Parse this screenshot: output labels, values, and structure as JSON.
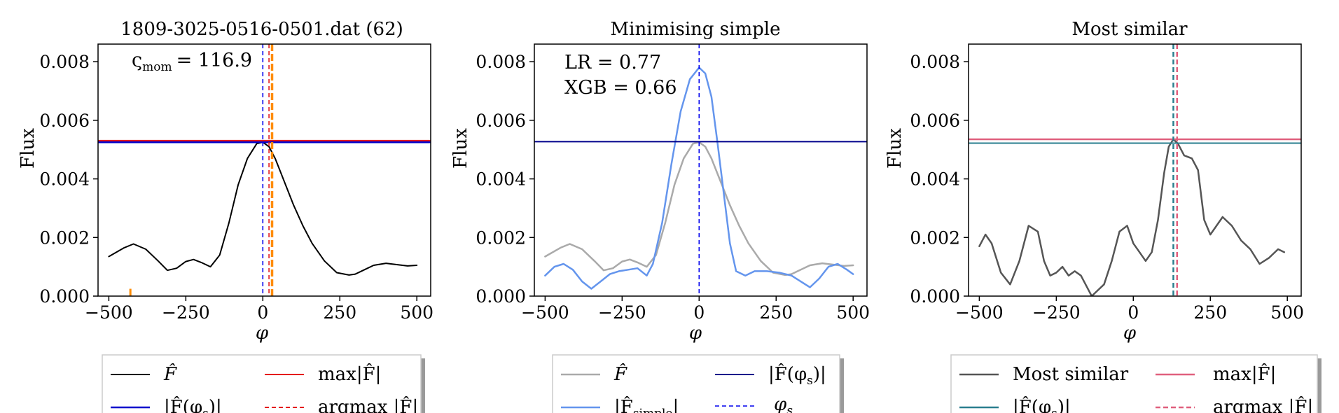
{
  "panels": [
    {
      "title": "1809-3025-0516-0501.dat (62)",
      "ylabel": "Flux",
      "xlabel": "φ",
      "annotations": [
        "ς",
        "mom",
        "= 116.9"
      ],
      "legend": [
        {
          "label_main": "F̂",
          "label_sub": "",
          "color": "#000000",
          "style": "solid"
        },
        {
          "label_main": "max|F̂|",
          "label_sub": "",
          "color": "#e41a1c",
          "style": "solid"
        },
        {
          "label_main": "|F̂(φ",
          "label_sub": "s",
          "label_tail": ")|",
          "color": "#0000cc",
          "style": "solid"
        },
        {
          "label_main": "argmax |F̂|",
          "label_sub": "",
          "color": "#e41a1c",
          "style": "dashed"
        }
      ]
    },
    {
      "title": "Minimising simple",
      "ylabel": "Flux",
      "xlabel": "φ",
      "annotations": [
        "LR = 0.77",
        "XGB = 0.66"
      ],
      "legend": [
        {
          "label_main": "F̂",
          "label_sub": "",
          "color": "#aaaaaa",
          "style": "solid"
        },
        {
          "label_main": "|F̂(φ",
          "label_sub": "s",
          "label_tail": ")|",
          "color": "#00008b",
          "style": "solid"
        },
        {
          "label_main": "|F̂",
          "label_sub": "simple",
          "label_tail": "|",
          "color": "#6495ed",
          "style": "solid"
        },
        {
          "label_main": "φ",
          "label_sub": "s",
          "color": "#0000ee",
          "style": "dashed"
        }
      ]
    },
    {
      "title": "Most similar",
      "ylabel": "Flux",
      "xlabel": "φ",
      "annotations": [],
      "legend": [
        {
          "label_main": "Most similar",
          "label_sub": "",
          "color": "#555555",
          "style": "solid"
        },
        {
          "label_main": "max|F̂|",
          "label_sub": "",
          "color": "#e0607e",
          "style": "solid"
        },
        {
          "label_main": "|F̂(φ",
          "label_sub": "s",
          "label_tail": ")|",
          "color": "#2a7f8f",
          "style": "solid"
        },
        {
          "label_main": "argmax |F̂|",
          "label_sub": "",
          "color": "#e0607e",
          "style": "dashed"
        }
      ]
    }
  ],
  "chart_data": [
    {
      "type": "line",
      "title": "1809-3025-0516-0501.dat (62)",
      "xlabel": "φ",
      "ylabel": "Flux",
      "xlim": [
        -535,
        545
      ],
      "ylim": [
        0,
        0.0086
      ],
      "xticks": [
        -500,
        -250,
        0,
        250,
        500
      ],
      "xtick_labels": [
        "−500",
        "−250",
        "0",
        "250",
        "500"
      ],
      "yticks": [
        0,
        0.002,
        0.004,
        0.006,
        0.008
      ],
      "ytick_labels": [
        "0.000",
        "0.002",
        "0.004",
        "0.006",
        "0.008"
      ],
      "series": [
        {
          "key": "F",
          "color": "#000000",
          "width": 2,
          "x": [
            -500,
            -450,
            -420,
            -380,
            -340,
            -310,
            -280,
            -250,
            -225,
            -200,
            -170,
            -140,
            -110,
            -80,
            -50,
            -20,
            0,
            20,
            40,
            70,
            100,
            130,
            160,
            200,
            240,
            280,
            300,
            330,
            360,
            400,
            430,
            470,
            500
          ],
          "y": [
            0.00135,
            0.00165,
            0.00178,
            0.0016,
            0.0012,
            0.00088,
            0.00095,
            0.00118,
            0.00125,
            0.00115,
            0.001,
            0.0014,
            0.0025,
            0.0038,
            0.0047,
            0.0052,
            0.00525,
            0.0051,
            0.0047,
            0.0039,
            0.0031,
            0.0024,
            0.0018,
            0.0012,
            0.0008,
            0.00072,
            0.00075,
            0.0009,
            0.00105,
            0.00112,
            0.00108,
            0.00103,
            0.00105
          ]
        }
      ],
      "hlines": [
        {
          "key": "max",
          "y": 0.0053,
          "color": "#e41a1c",
          "dash": "",
          "width": 2.5
        },
        {
          "key": "Fphis",
          "y": 0.00525,
          "color": "#0000cc",
          "dash": "",
          "width": 2.5
        }
      ],
      "vlines": [
        {
          "key": "phis",
          "x": 0,
          "color": "#0000ee",
          "dash": "6,4",
          "width": 1.6
        },
        {
          "key": "argmax",
          "x": 20,
          "color": "#e41a1c",
          "dash": "6,4",
          "width": 1.6
        },
        {
          "key": "marker",
          "x": 30,
          "color": "#ff8c00",
          "dash": "10,4",
          "width": 3.5
        }
      ],
      "rug": [
        {
          "x": -430,
          "height": 0.00025,
          "color": "#ff8c00"
        }
      ]
    },
    {
      "type": "line",
      "title": "Minimising simple",
      "xlabel": "φ",
      "ylabel": "Flux",
      "xlim": [
        -535,
        545
      ],
      "ylim": [
        0,
        0.0086
      ],
      "xticks": [
        -500,
        -250,
        0,
        250,
        500
      ],
      "xtick_labels": [
        "−500",
        "−250",
        "0",
        "250",
        "500"
      ],
      "yticks": [
        0,
        0.002,
        0.004,
        0.006,
        0.008
      ],
      "ytick_labels": [
        "0.000",
        "0.002",
        "0.004",
        "0.006",
        "0.008"
      ],
      "series": [
        {
          "key": "F",
          "color": "#aaaaaa",
          "width": 2.5,
          "x": [
            -500,
            -450,
            -420,
            -380,
            -340,
            -310,
            -280,
            -250,
            -225,
            -200,
            -170,
            -140,
            -110,
            -80,
            -50,
            -20,
            0,
            20,
            40,
            70,
            100,
            130,
            160,
            200,
            240,
            280,
            300,
            330,
            360,
            400,
            430,
            470,
            500
          ],
          "y": [
            0.00135,
            0.00165,
            0.00178,
            0.0016,
            0.0012,
            0.00088,
            0.00095,
            0.00118,
            0.00125,
            0.00115,
            0.001,
            0.0014,
            0.0025,
            0.0038,
            0.0047,
            0.0052,
            0.00525,
            0.0051,
            0.0047,
            0.0039,
            0.0031,
            0.0024,
            0.0018,
            0.0012,
            0.0008,
            0.00072,
            0.00075,
            0.0009,
            0.00105,
            0.00112,
            0.00108,
            0.00103,
            0.00105
          ]
        },
        {
          "key": "Fsimple",
          "color": "#6495ed",
          "width": 2.5,
          "x": [
            -500,
            -470,
            -440,
            -410,
            -380,
            -350,
            -320,
            -290,
            -260,
            -230,
            -200,
            -170,
            -150,
            -120,
            -90,
            -60,
            -30,
            0,
            20,
            40,
            60,
            80,
            100,
            120,
            150,
            180,
            220,
            260,
            300,
            330,
            360,
            390,
            420,
            450,
            480,
            500
          ],
          "y": [
            0.0007,
            0.001,
            0.0011,
            0.0009,
            0.0005,
            0.00025,
            0.0005,
            0.00075,
            0.00085,
            0.0009,
            0.00095,
            0.0007,
            0.0011,
            0.0025,
            0.0045,
            0.0063,
            0.0074,
            0.0078,
            0.0076,
            0.0068,
            0.0052,
            0.0035,
            0.0018,
            0.00085,
            0.0007,
            0.00085,
            0.00085,
            0.0008,
            0.0007,
            0.0005,
            0.0003,
            0.0006,
            0.001,
            0.0011,
            0.0009,
            0.00075
          ]
        }
      ],
      "hlines": [
        {
          "key": "Fphis",
          "y": 0.00527,
          "color": "#00008b",
          "dash": "",
          "width": 2
        }
      ],
      "vlines": [
        {
          "key": "phis",
          "x": 0,
          "color": "#0000ee",
          "dash": "6,4",
          "width": 1.6
        }
      ],
      "rug": []
    },
    {
      "type": "line",
      "title": "Most similar",
      "xlabel": "φ",
      "ylabel": "Flux",
      "xlim": [
        -535,
        545
      ],
      "ylim": [
        0,
        0.0086
      ],
      "xticks": [
        -500,
        -250,
        0,
        250,
        500
      ],
      "xtick_labels": [
        "−500",
        "−250",
        "0",
        "250",
        "500"
      ],
      "yticks": [
        0,
        0.002,
        0.004,
        0.006,
        0.008
      ],
      "ytick_labels": [
        "0.000",
        "0.002",
        "0.004",
        "0.006",
        "0.008"
      ],
      "series": [
        {
          "key": "Most",
          "color": "#555555",
          "width": 2.5,
          "x": [
            -500,
            -480,
            -460,
            -430,
            -400,
            -370,
            -340,
            -310,
            -290,
            -270,
            -250,
            -230,
            -210,
            -190,
            -170,
            -150,
            -135,
            -115,
            -95,
            -70,
            -45,
            -20,
            0,
            20,
            40,
            60,
            80,
            100,
            115,
            130,
            145,
            165,
            190,
            210,
            230,
            250,
            270,
            290,
            320,
            350,
            380,
            410,
            440,
            470,
            490
          ],
          "y": [
            0.0017,
            0.0021,
            0.0018,
            0.0008,
            0.0004,
            0.0012,
            0.0024,
            0.0022,
            0.0012,
            0.0007,
            0.0008,
            0.001,
            0.0007,
            0.00085,
            0.0007,
            0.0003,
            0.0,
            0.0002,
            0.0004,
            0.0012,
            0.0022,
            0.0024,
            0.0018,
            0.0015,
            0.0012,
            0.0015,
            0.0026,
            0.0042,
            0.0051,
            0.00535,
            0.0052,
            0.0048,
            0.0047,
            0.0043,
            0.0026,
            0.0021,
            0.0024,
            0.0027,
            0.0024,
            0.0019,
            0.0016,
            0.0011,
            0.0013,
            0.0016,
            0.0015
          ]
        }
      ],
      "hlines": [
        {
          "key": "max",
          "y": 0.00535,
          "color": "#e0607e",
          "dash": "",
          "width": 2.5
        },
        {
          "key": "Fphis",
          "y": 0.00522,
          "color": "#2a7f8f",
          "dash": "",
          "width": 2
        }
      ],
      "vlines": [
        {
          "key": "phis",
          "x": 130,
          "color": "#2a7f8f",
          "dash": "7,4",
          "width": 2.5
        },
        {
          "key": "argmax",
          "x": 142,
          "color": "#e0607e",
          "dash": "7,4",
          "width": 2.5
        }
      ],
      "rug": []
    }
  ]
}
